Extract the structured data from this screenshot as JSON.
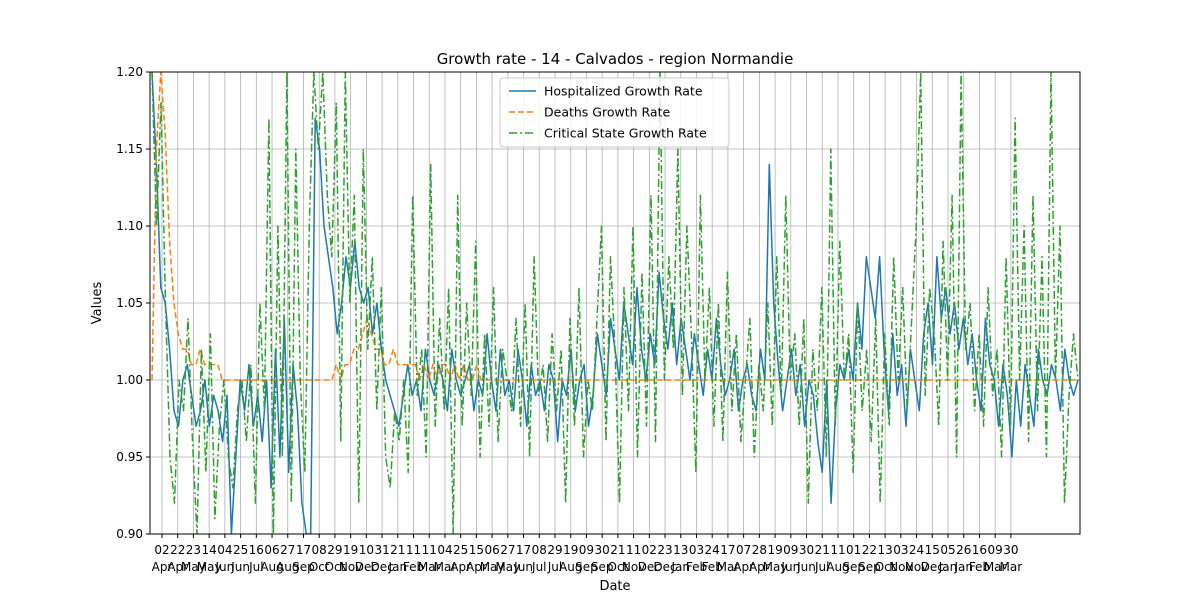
{
  "chart_data": {
    "type": "line",
    "title": "Growth rate - 14 - Calvados - region Normandie",
    "xlabel": "Date",
    "ylabel": "Values",
    "ylim": [
      0.9,
      1.2
    ],
    "y_ticks": [
      "0.90",
      "0.95",
      "1.00",
      "1.05",
      "1.10",
      "1.15",
      "1.20"
    ],
    "grid": true,
    "legend_position": "top-center",
    "x_ticks": [
      {
        "day": "02",
        "month": "Apr"
      },
      {
        "day": "22",
        "month": "Apr"
      },
      {
        "day": "23",
        "month": "May"
      },
      {
        "day": "14",
        "month": "May"
      },
      {
        "day": "04",
        "month": "Jun"
      },
      {
        "day": "25",
        "month": "Jun"
      },
      {
        "day": "16",
        "month": "Jul"
      },
      {
        "day": "06",
        "month": "Aug"
      },
      {
        "day": "27",
        "month": "Aug"
      },
      {
        "day": "17",
        "month": "Sep"
      },
      {
        "day": "08",
        "month": "Oct"
      },
      {
        "day": "29",
        "month": "Oct"
      },
      {
        "day": "19",
        "month": "Nov"
      },
      {
        "day": "10",
        "month": "Dec"
      },
      {
        "day": "31",
        "month": "Dec"
      },
      {
        "day": "21",
        "month": "Jan"
      },
      {
        "day": "11",
        "month": "Feb"
      },
      {
        "day": "11",
        "month": "Mar"
      },
      {
        "day": "04",
        "month": "Mar"
      },
      {
        "day": "25",
        "month": "Apr"
      },
      {
        "day": "15",
        "month": "Apr"
      },
      {
        "day": "06",
        "month": "May"
      },
      {
        "day": "27",
        "month": "May"
      },
      {
        "day": "17",
        "month": "Jun"
      },
      {
        "day": "08",
        "month": "Jul"
      },
      {
        "day": "29",
        "month": "Jul"
      },
      {
        "day": "19",
        "month": "Aug"
      },
      {
        "day": "09",
        "month": "Sep"
      },
      {
        "day": "30",
        "month": "Sep"
      },
      {
        "day": "21",
        "month": "Oct"
      },
      {
        "day": "11",
        "month": "Nov"
      },
      {
        "day": "02",
        "month": "Dec"
      },
      {
        "day": "23",
        "month": "Dec"
      },
      {
        "day": "13",
        "month": "Jan"
      },
      {
        "day": "03",
        "month": "Feb"
      },
      {
        "day": "24",
        "month": "Feb"
      },
      {
        "day": "17",
        "month": "Mar"
      },
      {
        "day": "07",
        "month": "Apr"
      },
      {
        "day": "28",
        "month": "Apr"
      },
      {
        "day": "19",
        "month": "May"
      },
      {
        "day": "09",
        "month": "Jun"
      },
      {
        "day": "30",
        "month": "Jun"
      },
      {
        "day": "21",
        "month": "Jul"
      },
      {
        "day": "11",
        "month": "Aug"
      },
      {
        "day": "01",
        "month": "Sep"
      },
      {
        "day": "22",
        "month": "Sep"
      },
      {
        "day": "13",
        "month": "Oct"
      },
      {
        "day": "03",
        "month": "Nov"
      },
      {
        "day": "24",
        "month": "Nov"
      },
      {
        "day": "15",
        "month": "Dec"
      },
      {
        "day": "05",
        "month": "Jan"
      },
      {
        "day": "26",
        "month": "Jan"
      },
      {
        "day": "16",
        "month": "Feb"
      },
      {
        "day": "09",
        "month": "Mar"
      },
      {
        "day": "30",
        "month": "Mar"
      }
    ],
    "series": [
      {
        "name": "Hospitalized Growth Rate",
        "color": "#1f77b4",
        "style": "solid",
        "values": [
          1.2,
          1.14,
          1.06,
          1.05,
          1.02,
          0.98,
          0.97,
          1.0,
          1.01,
          0.99,
          0.97,
          0.98,
          1.0,
          0.97,
          0.99,
          0.98,
          0.96,
          0.99,
          0.9,
          0.95,
          1.0,
          0.98,
          1.01,
          0.97,
          0.99,
          0.96,
          1.0,
          0.93,
          1.02,
          0.95,
          1.04,
          0.94,
          1.01,
          0.98,
          0.92,
          0.9,
          0.9,
          1.17,
          1.15,
          1.1,
          1.08,
          1.06,
          1.03,
          1.05,
          1.08,
          1.06,
          1.09,
          1.06,
          1.05,
          1.06,
          1.03,
          1.05,
          1.02,
          1.0,
          0.99,
          0.98,
          0.97,
          0.99,
          1.01,
          0.99,
          1.0,
          0.98,
          1.02,
          1.0,
          0.99,
          1.01,
          1.0,
          0.98,
          1.02,
          1.0,
          0.99,
          1.0,
          1.01,
          0.98,
          1.0,
          0.99,
          1.03,
          1.0,
          0.98,
          1.02,
          0.99,
          1.0,
          0.98,
          1.02,
          1.0,
          0.97,
          1.01,
          0.99,
          1.0,
          0.98,
          1.01,
          1.0,
          0.96,
          1.0,
          0.99,
          1.02,
          0.98,
          1.0,
          1.01,
          0.97,
          0.99,
          1.03,
          1.01,
          0.99,
          1.04,
          1.02,
          1.0,
          1.05,
          1.03,
          1.01,
          1.06,
          1.02,
          1.0,
          1.03,
          1.01,
          1.07,
          1.04,
          1.02,
          1.05,
          1.01,
          1.04,
          1.02,
          1.0,
          1.03,
          1.01,
          0.99,
          1.02,
          1.0,
          1.04,
          1.01,
          0.99,
          1.0,
          1.02,
          0.98,
          1.0,
          1.01,
          0.99,
          0.98,
          1.02,
          1.0,
          1.14,
          1.05,
          1.01,
          0.98,
          1.0,
          1.02,
          0.99,
          1.01,
          0.97,
          1.0,
          0.99,
          0.96,
          0.94,
          1.0,
          0.92,
          0.98,
          1.01,
          1.0,
          1.02,
          1.0,
          1.05,
          1.02,
          1.08,
          1.06,
          1.04,
          1.08,
          1.02,
          0.98,
          1.03,
          0.99,
          1.01,
          0.97,
          1.02,
          1.0,
          0.98,
          1.03,
          1.05,
          1.01,
          1.08,
          1.04,
          1.06,
          1.03,
          1.05,
          1.02,
          1.04,
          1.01,
          1.03,
          1.0,
          0.98,
          1.04,
          1.01,
          1.0,
          0.97,
          1.01,
          0.99,
          0.95,
          1.0,
          0.97,
          1.01,
          0.99,
          0.97,
          1.02,
          1.0,
          0.99,
          1.01,
          1.0,
          0.98,
          1.02,
          1.0,
          0.99,
          1.0
        ]
      },
      {
        "name": "Deaths Growth Rate",
        "color": "#ff7f0e",
        "style": "dashed",
        "values": [
          1.0,
          1.15,
          1.2,
          1.16,
          1.09,
          1.05,
          1.03,
          1.02,
          1.02,
          1.01,
          1.01,
          1.02,
          1.01,
          1.01,
          1.01,
          1.01,
          1.0,
          1.0,
          1.0,
          1.0,
          1.0,
          1.0,
          1.0,
          1.0,
          1.0,
          1.0,
          1.0,
          1.0,
          1.0,
          1.0,
          1.0,
          1.0,
          1.0,
          1.0,
          1.0,
          1.0,
          1.0,
          1.0,
          1.0,
          1.0,
          1.0,
          1.0,
          1.01,
          1.0,
          1.01,
          1.01,
          1.02,
          1.02,
          1.03,
          1.04,
          1.03,
          1.02,
          1.02,
          1.01,
          1.01,
          1.02,
          1.01,
          1.01,
          1.01,
          1.01,
          1.01,
          1.0,
          1.01,
          1.0,
          1.01,
          1.0,
          1.01,
          1.01,
          1.0,
          1.01,
          1.0,
          1.01,
          1.0,
          1.0,
          1.01,
          1.0,
          1.0,
          1.0,
          1.0,
          1.0,
          1.0,
          1.0,
          1.0,
          1.0,
          1.0,
          1.0,
          1.0,
          1.0,
          1.0,
          1.0,
          1.0,
          1.0,
          1.0,
          1.0,
          1.0,
          1.0,
          1.0,
          1.0,
          1.0,
          1.0,
          1.0,
          1.0,
          1.0,
          1.0,
          1.0,
          1.0,
          1.0,
          1.0,
          1.0,
          1.0,
          1.0,
          1.0,
          1.0,
          1.0,
          1.0,
          1.0,
          1.0,
          1.0,
          1.0,
          1.0,
          1.0,
          1.0,
          1.0,
          1.0,
          1.0,
          1.0,
          1.0,
          1.0,
          1.0,
          1.0,
          1.0,
          1.0,
          1.0,
          1.0,
          1.0,
          1.0,
          1.0,
          1.0,
          1.0,
          1.0,
          1.0,
          1.0,
          1.0,
          1.0,
          1.0,
          1.0,
          1.0,
          1.0,
          1.0,
          1.0,
          1.0,
          1.0,
          1.0,
          1.0,
          1.0,
          1.0,
          1.0,
          1.0,
          1.0,
          1.0,
          1.0,
          1.0,
          1.0,
          1.0,
          1.0,
          1.0,
          1.0,
          1.0,
          1.0,
          1.0,
          1.0,
          1.0,
          1.0,
          1.0,
          1.0,
          1.0,
          1.0,
          1.0,
          1.0,
          1.0,
          1.0,
          1.0,
          1.0,
          1.0,
          1.0,
          1.0,
          1.0,
          1.0,
          1.0,
          1.0,
          1.0,
          1.0,
          1.0,
          1.0,
          1.0,
          1.0,
          1.0,
          1.0,
          1.0,
          1.0,
          1.0,
          1.0,
          1.0,
          1.0,
          1.0,
          1.0,
          1.0,
          1.0,
          1.0,
          1.0,
          1.0,
          1.0
        ]
      },
      {
        "name": "Critical State Growth Rate",
        "color": "#2ca02c",
        "style": "dashdot",
        "values": [
          1.2,
          1.1,
          1.18,
          1.05,
          0.95,
          0.92,
          1.0,
          0.98,
          1.04,
          0.96,
          0.9,
          1.02,
          0.94,
          1.03,
          0.91,
          0.97,
          1.0,
          0.95,
          0.93,
          0.98,
          1.0,
          0.96,
          1.01,
          0.92,
          1.05,
          0.98,
          1.17,
          0.9,
          1.1,
          0.95,
          1.2,
          0.92,
          1.15,
          1.0,
          0.94,
          1.1,
          1.2,
          1.15,
          1.2,
          1.12,
          1.08,
          1.18,
          0.96,
          1.2,
          1.05,
          1.12,
          0.92,
          1.15,
          1.02,
          1.08,
          0.98,
          1.06,
          0.95,
          0.93,
          0.98,
          0.96,
          1.0,
          0.94,
          1.12,
          0.99,
          1.02,
          0.95,
          1.14,
          0.97,
          1.04,
          0.98,
          1.06,
          0.9,
          1.12,
          0.97,
          1.05,
          0.99,
          1.09,
          0.95,
          1.03,
          0.97,
          1.06,
          0.96,
          1.02,
          1.0,
          0.98,
          1.04,
          0.97,
          1.05,
          0.95,
          1.08,
          0.99,
          1.01,
          0.96,
          1.03,
          0.98,
          1.02,
          0.92,
          1.04,
          0.97,
          1.06,
          0.95,
          1.0,
          0.98,
          1.04,
          1.1,
          0.96,
          1.08,
          1.02,
          0.92,
          1.06,
          0.98,
          1.1,
          0.95,
          1.07,
          0.97,
          1.12,
          0.96,
          1.2,
          1.0,
          1.08,
          1.02,
          1.15,
          0.99,
          1.1,
          1.03,
          0.94,
          1.12,
          1.0,
          1.06,
          0.97,
          1.05,
          0.96,
          1.07,
          0.98,
          1.03,
          0.96,
          1.0,
          1.04,
          0.95,
          1.01,
          0.98,
          1.05,
          0.97,
          1.08,
          0.99,
          1.12,
          1.0,
          1.03,
          0.97,
          1.04,
          0.92,
          1.02,
          0.98,
          1.06,
          0.95,
          1.15,
          0.97,
          1.09,
          1.0,
          1.03,
          0.94,
          1.05,
          0.98,
          1.02,
          0.96,
          1.04,
          0.92,
          1.03,
          0.97,
          1.08,
          1.0,
          1.06,
          0.98,
          1.04,
          1.1,
          1.2,
          0.99,
          1.06,
          1.03,
          0.97,
          1.09,
          1.0,
          1.12,
          0.95,
          1.2,
          1.02,
          1.05,
          0.98,
          1.03,
          0.97,
          1.06,
          0.99,
          1.02,
          0.95,
          1.08,
          0.97,
          1.17,
          1.0,
          1.1,
          0.96,
          1.12,
          0.98,
          1.08,
          0.95,
          1.2,
          1.0,
          1.1,
          0.92,
          0.99,
          1.03,
          1.0
        ]
      }
    ]
  }
}
